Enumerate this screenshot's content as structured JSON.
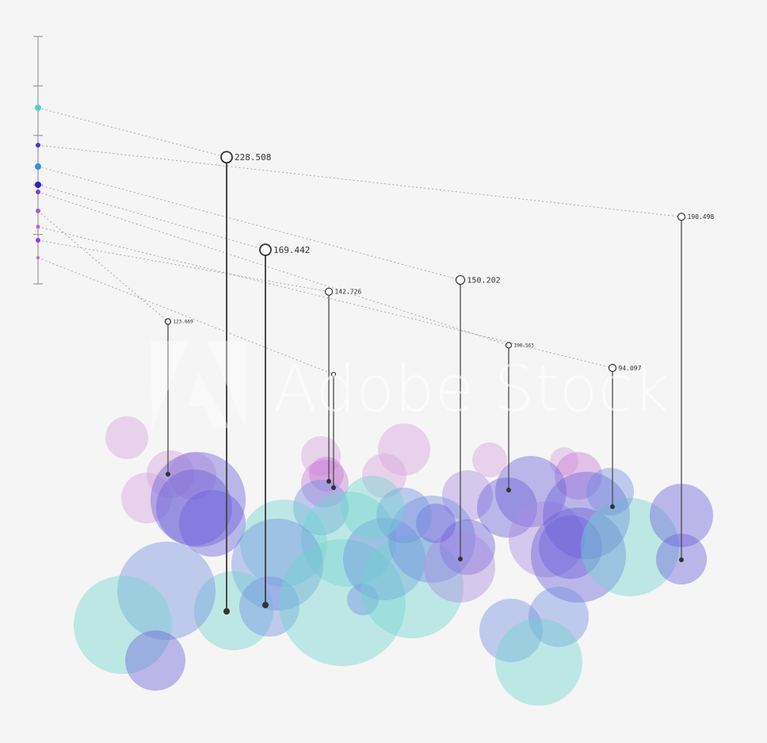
{
  "chart_data": {
    "type": "scatter",
    "title": "",
    "xlabel": "",
    "ylabel": "",
    "grid": false,
    "legend": "none",
    "scale_axis": {
      "ticks": 6
    },
    "series_colors": [
      "#4fd1cc",
      "#3a3ad6",
      "#2f8fe0",
      "#2323c8",
      "#7a3ee0",
      "#b84fe0",
      "#c45ae0",
      "#9a3ae6",
      "#d060c8"
    ],
    "stems": [
      {
        "label": "123.669",
        "value": 123.669,
        "label_size": "tiny"
      },
      {
        "label": "228.508",
        "value": 228.508,
        "label_size": "large"
      },
      {
        "label": "169.442",
        "value": 169.442,
        "label_size": "large"
      },
      {
        "label": "142.726",
        "value": 142.726,
        "label_size": "small"
      },
      {
        "label": "",
        "value": 90.0,
        "label_size": "none"
      },
      {
        "label": "150.202",
        "value": 150.202,
        "label_size": "medium"
      },
      {
        "label": "108.563",
        "value": 108.563,
        "label_size": "tiny"
      },
      {
        "label": "94.097",
        "value": 94.097,
        "label_size": "small"
      },
      {
        "label": "190.498",
        "value": 190.498,
        "label_size": "small"
      }
    ],
    "bubble_colors": {
      "teal": "#6fd3cf",
      "blue": "#6f8fe0",
      "indigo": "#6a5fd8",
      "lavender": "#a98be0",
      "pink": "#d9a6dd",
      "magenta": "#c77ad8"
    }
  },
  "watermark": {
    "text": "Adobe Stock"
  }
}
